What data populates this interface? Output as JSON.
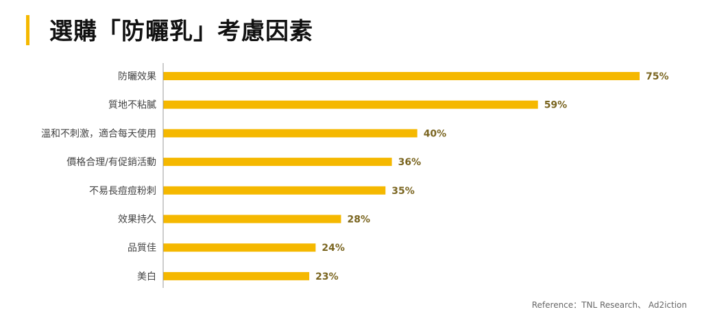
{
  "title": "選購「防曬乳」考慮因素",
  "reference": "Reference：TNL Research、 Ad2iction",
  "colors": {
    "bar": "#F5B800",
    "value_label": "#7A6520",
    "category_label": "#444444",
    "axis": "#999999",
    "title_accent": "#F5B800"
  },
  "chart_data": {
    "type": "bar",
    "orientation": "horizontal",
    "categories": [
      "防曬效果",
      "質地不粘膩",
      "溫和不刺激，適合每天使用",
      "價格合理/有促銷活動",
      "不易長痘痘粉刺",
      "效果持久",
      "品質佳",
      "美白"
    ],
    "values": [
      75,
      59,
      40,
      36,
      35,
      28,
      24,
      23
    ],
    "value_labels": [
      "75%",
      "59%",
      "40%",
      "36%",
      "35%",
      "28%",
      "24%",
      "23%"
    ],
    "unit": "%",
    "xlim": [
      0,
      75
    ],
    "grid": false,
    "legend": "none"
  }
}
